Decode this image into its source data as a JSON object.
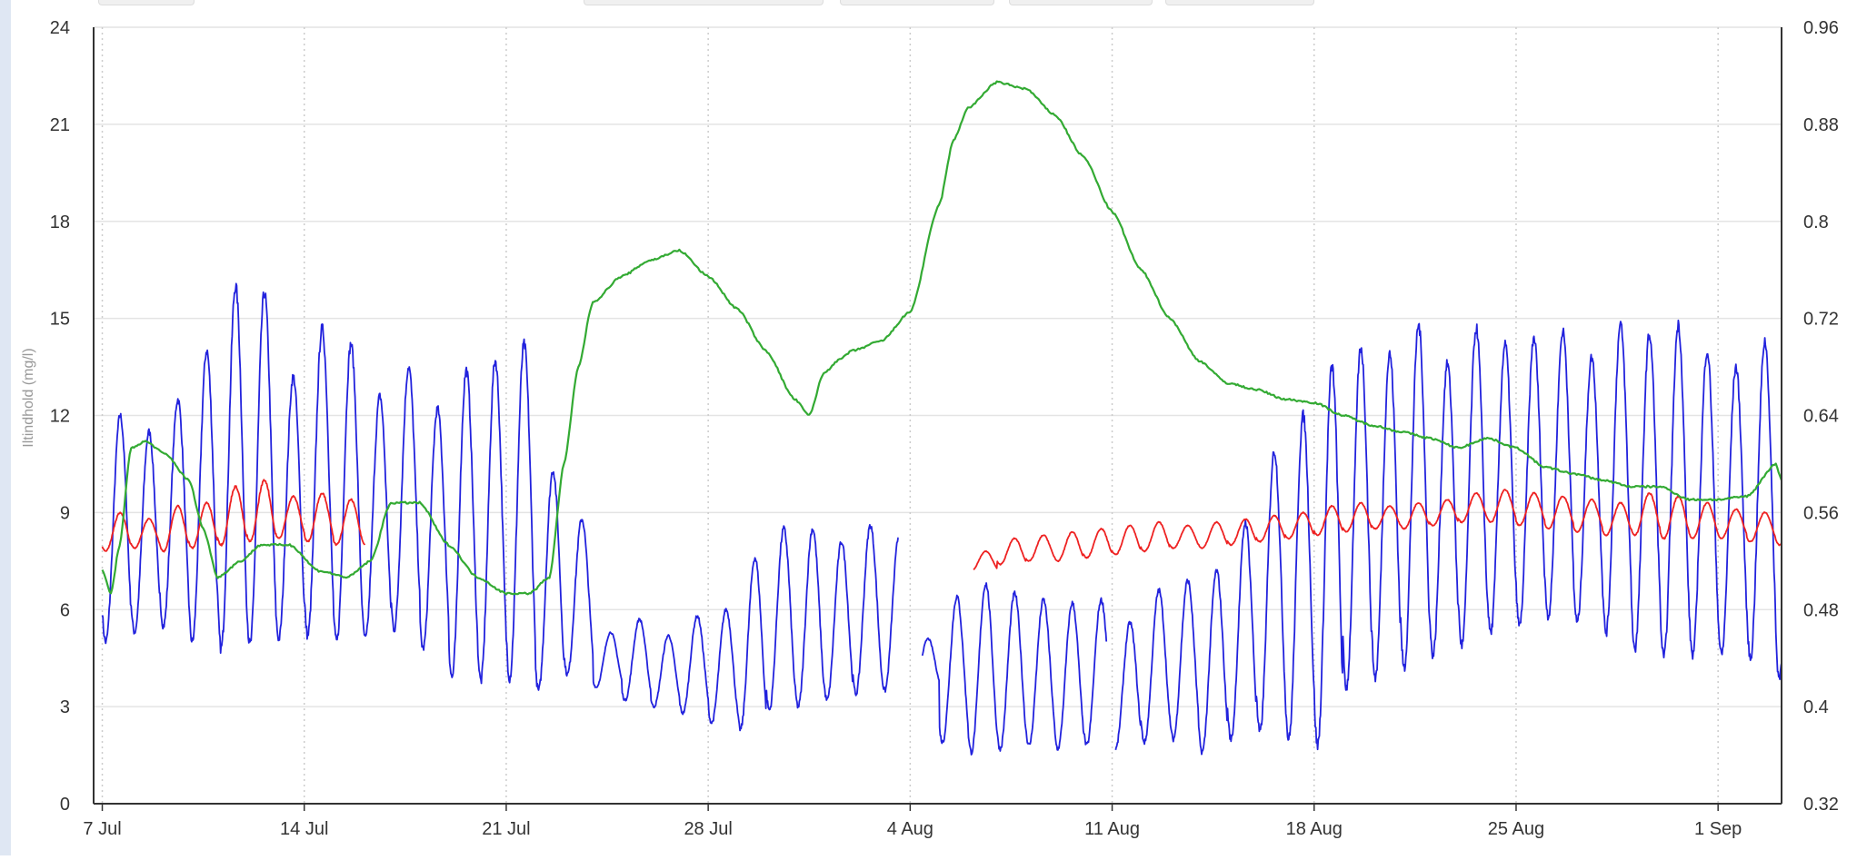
{
  "chart_data": {
    "type": "line",
    "xlabel": "",
    "ylabel": "Iltindhold (mg/l)",
    "y2label": "",
    "x_tick_labels": [
      "7 Jul",
      "14 Jul",
      "21 Jul",
      "28 Jul",
      "4 Aug",
      "11 Aug",
      "18 Aug",
      "25 Aug",
      "1 Sep"
    ],
    "x_tick_days": [
      0,
      7,
      14,
      21,
      28,
      35,
      42,
      49,
      56
    ],
    "x_range_days": [
      -0.3,
      58.2
    ],
    "y_ticks": [
      0,
      3,
      6,
      9,
      12,
      15,
      18,
      21,
      24
    ],
    "ylim": [
      0,
      24
    ],
    "y2_ticks": [
      "0.32",
      "0.4",
      "0.48",
      "0.56",
      "0.64",
      "0.72",
      "0.8",
      "0.88",
      "0.96"
    ],
    "y2lim": [
      0.32,
      0.96
    ],
    "grid": true,
    "legend": "none",
    "series": [
      {
        "color": "#2222dd",
        "axis": "left",
        "pattern": "daily-oscillation",
        "daily_max": [
          12.0,
          11.5,
          12.5,
          14.0,
          16.0,
          15.8,
          13.2,
          14.7,
          14.2,
          12.6,
          13.5,
          12.2,
          13.4,
          13.7,
          14.2,
          10.3,
          8.8,
          5.3,
          5.7,
          5.2,
          5.8,
          6.0,
          7.6,
          8.5,
          8.5,
          8.1,
          8.6,
          8.3,
          5.1,
          6.4,
          6.8,
          6.5,
          6.3,
          6.2,
          6.3,
          5.6,
          6.6,
          6.9,
          7.2,
          8.7,
          10.9,
          12.0,
          13.5,
          14.1,
          13.9,
          14.8,
          13.6,
          14.7,
          14.2,
          14.4,
          14.6,
          13.8,
          14.8,
          14.5,
          14.8,
          14.0,
          13.5,
          14.3,
          13.7,
          12.0,
          12.8
        ],
        "daily_min": [
          5.0,
          5.3,
          5.5,
          5.0,
          4.8,
          4.9,
          5.1,
          5.2,
          5.0,
          5.1,
          5.4,
          4.8,
          3.9,
          3.8,
          3.9,
          3.5,
          4.0,
          3.6,
          3.2,
          3.0,
          2.8,
          2.5,
          2.3,
          2.9,
          3.0,
          3.2,
          3.4,
          3.5,
          3.6,
          1.9,
          1.6,
          1.7,
          1.8,
          1.7,
          1.8,
          1.7,
          1.9,
          2.0,
          1.6,
          2.0,
          2.2,
          2.0,
          1.8,
          3.6,
          3.9,
          4.2,
          4.6,
          4.9,
          5.3,
          5.5,
          5.8,
          5.6,
          5.3,
          4.8,
          4.5,
          4.6,
          4.6,
          4.5,
          3.9,
          4.5,
          5.0
        ],
        "gaps": [
          [
            27.6,
            28.4
          ],
          [
            34.8,
            35.1
          ]
        ]
      },
      {
        "color": "#ee2222",
        "axis": "left",
        "pattern": "daily-oscillation",
        "segments": [
          [
            0,
            9.1
          ],
          [
            30.2,
            58.2
          ]
        ],
        "daily_max": [
          9.0,
          8.8,
          9.2,
          9.3,
          9.8,
          10.0,
          9.5,
          9.6,
          9.4,
          9.2,
          null,
          null,
          null,
          null,
          null,
          null,
          null,
          null,
          null,
          null,
          null,
          null,
          null,
          null,
          null,
          null,
          null,
          null,
          null,
          null,
          7.8,
          8.2,
          8.3,
          8.4,
          8.5,
          8.6,
          8.7,
          8.6,
          8.7,
          8.8,
          8.9,
          9.0,
          9.2,
          9.3,
          9.2,
          9.3,
          9.4,
          9.6,
          9.7,
          9.6,
          9.5,
          9.4,
          9.3,
          9.6,
          9.5,
          9.3,
          9.1,
          9.0,
          9.2,
          9.0
        ],
        "daily_min": [
          7.8,
          7.9,
          7.8,
          7.9,
          8.0,
          8.1,
          8.2,
          8.1,
          8.0,
          8.0,
          null,
          null,
          null,
          null,
          null,
          null,
          null,
          null,
          null,
          null,
          null,
          null,
          null,
          null,
          null,
          null,
          null,
          null,
          null,
          null,
          7.2,
          7.4,
          7.5,
          7.5,
          7.6,
          7.7,
          7.8,
          7.9,
          7.9,
          8.0,
          8.1,
          8.2,
          8.3,
          8.4,
          8.5,
          8.5,
          8.6,
          8.7,
          8.7,
          8.6,
          8.5,
          8.4,
          8.3,
          8.3,
          8.2,
          8.2,
          8.2,
          8.1,
          8.0,
          8.1
        ]
      },
      {
        "color": "#33aa33",
        "axis": "left",
        "pattern": "smooth",
        "x": [
          0,
          0.3,
          0.6,
          1.0,
          1.5,
          2.2,
          3.0,
          3.5,
          4.0,
          4.8,
          5.5,
          6.5,
          7.5,
          8.5,
          9.3,
          10.0,
          11.0,
          12.0,
          13.0,
          14.0,
          14.8,
          15.5,
          16.0,
          16.5,
          17.0,
          18.0,
          19.0,
          20.0,
          21.0,
          22.0,
          23.0,
          24.0,
          24.5,
          25.0,
          25.5,
          26.0,
          27.0,
          28.0,
          29.0,
          29.5,
          30.0,
          31.0,
          32.0,
          33.0,
          34.0,
          35.0,
          36.0,
          37.0,
          38.0,
          39.0,
          40.0,
          41.0,
          42.0,
          43.0,
          44.0,
          45.0,
          46.0,
          47.0,
          48.0,
          49.0,
          50.0,
          51.0,
          52.0,
          53.0,
          54.0,
          55.0,
          56.0,
          57.0,
          58.0,
          58.2
        ],
        "y": [
          7.2,
          6.5,
          8.0,
          11.0,
          11.2,
          10.8,
          10.0,
          8.5,
          7.0,
          7.5,
          8.0,
          8.0,
          7.2,
          7.0,
          7.5,
          9.3,
          9.3,
          8.0,
          7.0,
          6.5,
          6.5,
          7.0,
          10.5,
          13.5,
          15.5,
          16.3,
          16.8,
          17.1,
          16.3,
          15.3,
          14.0,
          12.5,
          12.0,
          13.3,
          13.7,
          14.0,
          14.3,
          15.2,
          18.5,
          20.5,
          21.5,
          22.3,
          22.1,
          21.3,
          20.0,
          18.3,
          16.5,
          15.0,
          13.7,
          13.0,
          12.8,
          12.5,
          12.4,
          12.0,
          11.7,
          11.5,
          11.3,
          11.0,
          11.3,
          11.0,
          10.4,
          10.2,
          10.0,
          9.8,
          9.8,
          9.4,
          9.4,
          9.5,
          10.5,
          10.0
        ]
      }
    ]
  }
}
